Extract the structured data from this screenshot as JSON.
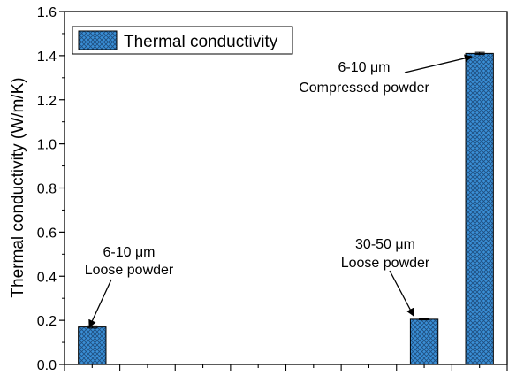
{
  "chart_data": {
    "type": "bar",
    "ylabel": "Thermal conductivity (W/m/K)",
    "xlabel": "",
    "ylim": [
      0,
      1.6
    ],
    "yticks": [
      0.0,
      0.2,
      0.4,
      0.6,
      0.8,
      1.0,
      1.2,
      1.4,
      1.6
    ],
    "ytick_labels": [
      "0.0",
      "0.2",
      "0.4",
      "0.6",
      "0.8",
      "1.0",
      "1.2",
      "1.4",
      "1.6"
    ],
    "xlim": [
      0,
      16
    ],
    "bars": [
      {
        "x": 1,
        "value": 0.17,
        "error": 0.005
      },
      {
        "x": 13,
        "value": 0.205,
        "error": 0.003
      },
      {
        "x": 15,
        "value": 1.41,
        "error": 0.005
      }
    ],
    "series": [
      {
        "name": "Thermal conductivity",
        "pattern": "crosshatch"
      }
    ],
    "legend_position": "top-left",
    "grid": false,
    "colors": {
      "bar_fill": "#3a8fd6",
      "bar_hatch": "#1f4f80",
      "axis": "#000000"
    },
    "annotations": [
      {
        "line1": "6-10 μm",
        "line2": "Loose powder",
        "target_bar": 0
      },
      {
        "line1": "30-50 μm",
        "line2": "Loose powder",
        "target_bar": 1
      },
      {
        "line1": "6-10 μm",
        "line2": "Compressed powder",
        "target_bar": 2
      }
    ]
  }
}
